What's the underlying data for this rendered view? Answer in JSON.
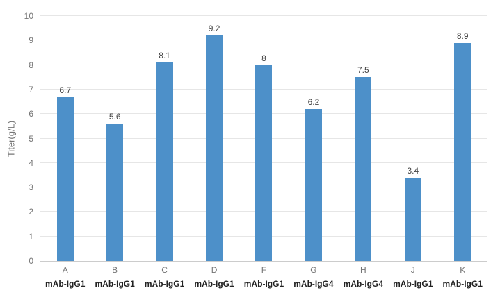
{
  "chart_data": {
    "type": "bar",
    "title": "",
    "xlabel": "",
    "ylabel": "Titer(g/L)",
    "ylim": [
      0,
      10
    ],
    "ytick_step": 1,
    "ytick_labels": [
      "0",
      "1",
      "2",
      "3",
      "4",
      "5",
      "6",
      "7",
      "8",
      "9",
      "10"
    ],
    "categories": [
      "A",
      "B",
      "C",
      "D",
      "F",
      "G",
      "H",
      "J",
      "K"
    ],
    "category_sublabels": [
      "mAb-IgG1",
      "mAb-IgG1",
      "mAb-IgG1",
      "mAb-IgG1",
      "mAb-IgG1",
      "mAb-IgG4",
      "mAb-IgG4",
      "mAb-IgG1",
      "mAb-IgG1"
    ],
    "values": [
      6.7,
      5.6,
      8.1,
      9.2,
      8,
      6.2,
      7.5,
      3.4,
      8.9
    ],
    "value_labels": [
      "6.7",
      "5.6",
      "8.1",
      "9.2",
      "8",
      "6.2",
      "7.5",
      "3.4",
      "8.9"
    ],
    "grid": true,
    "legend_position": "none",
    "colors": {
      "bar": "#4d90c9",
      "grid": "#e6e6e6",
      "axis": "#cccccc",
      "tick_text": "#757575",
      "value_label_text": "#444444",
      "sublabel_text": "#222222",
      "background": "#ffffff"
    }
  }
}
